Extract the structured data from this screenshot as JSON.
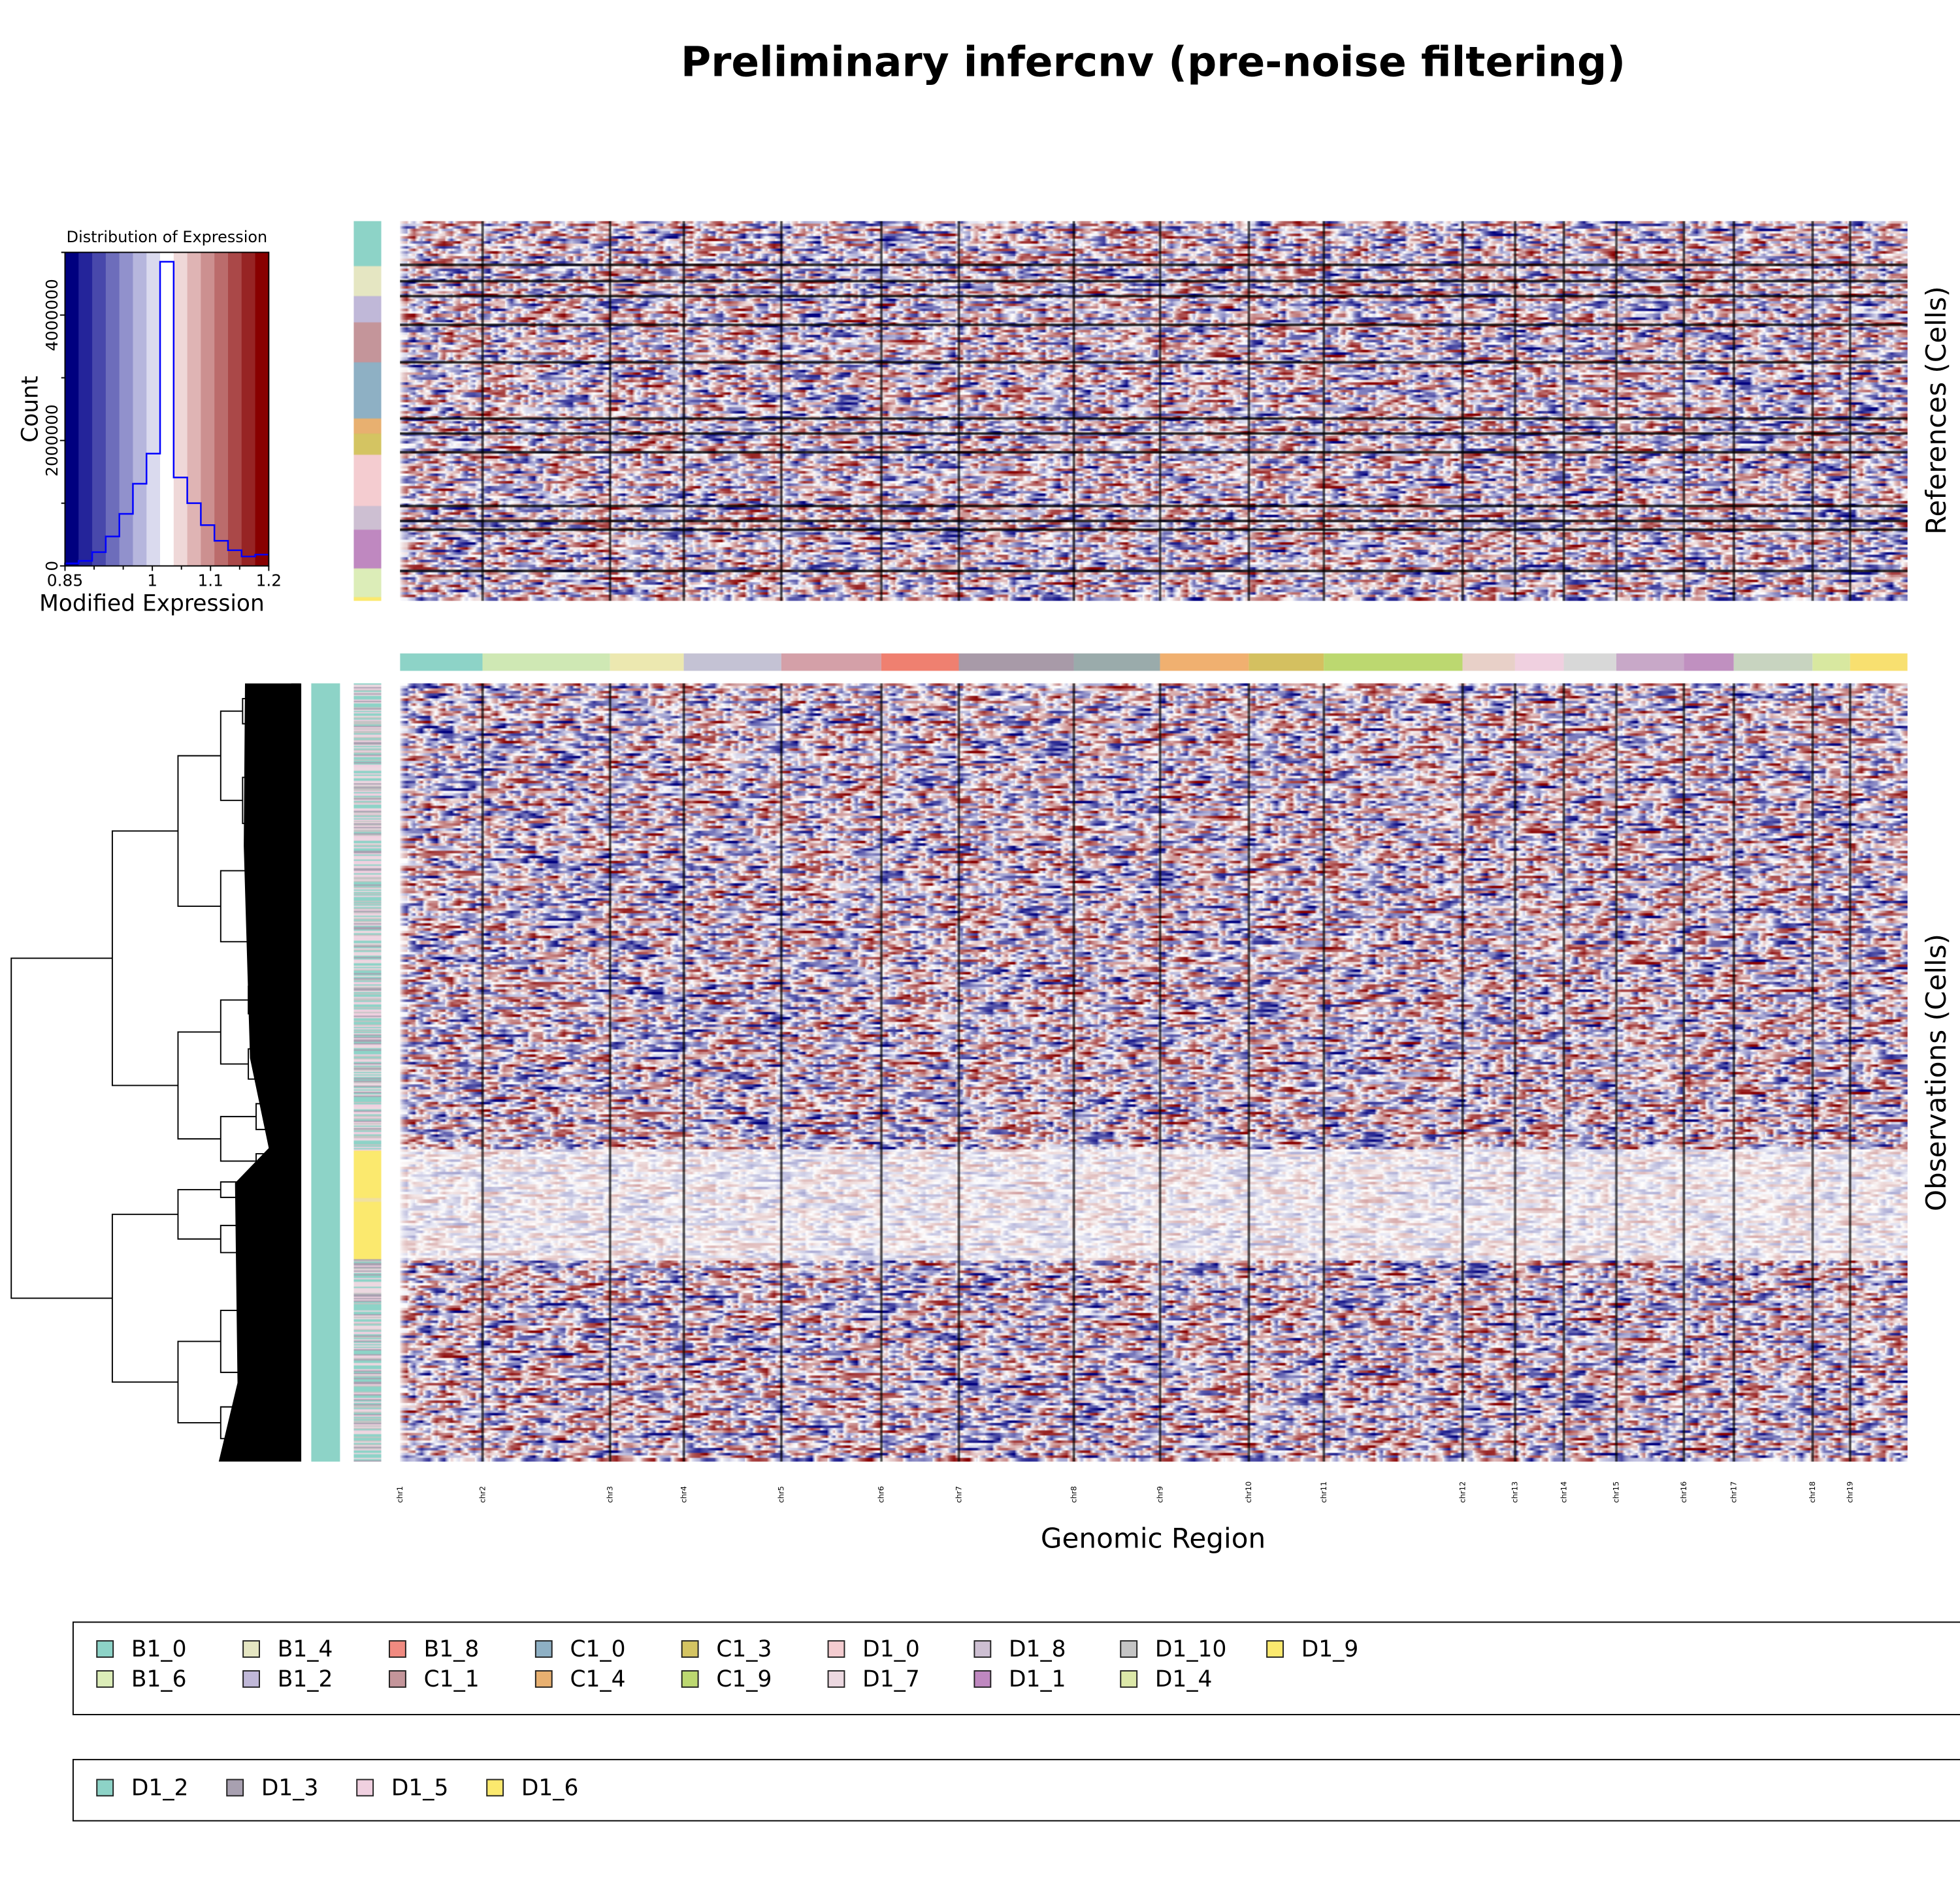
{
  "title": "Preliminary infercnv (pre-noise filtering)",
  "labels": {
    "references": "References (Cells)",
    "observations": "Observations (Cells)",
    "genomic_region": "Genomic Region"
  },
  "chart_data": [
    {
      "type": "bar",
      "subtype": "histogram-step",
      "title": "Distribution of Expression",
      "xlabel": "Modified Expression",
      "ylabel": "Count",
      "xlim": [
        0.85,
        1.2
      ],
      "ylim": [
        0,
        5000000
      ],
      "xticks": [
        {
          "v": 0.85,
          "label": "0.85"
        },
        {
          "v": 1.0,
          "label": "1"
        },
        {
          "v": 1.1,
          "label": "1.1"
        },
        {
          "v": 1.2,
          "label": "1.2"
        }
      ],
      "xminor": [
        0.9,
        0.95,
        1.05,
        1.15
      ],
      "yticks": [
        {
          "v": 0,
          "label": "0"
        },
        {
          "v": 2000000,
          "label": "2000000"
        },
        {
          "v": 4000000,
          "label": "4000000"
        }
      ],
      "yminor": [
        1000000,
        3000000,
        5000000
      ],
      "line_color": "#0000ff",
      "bin_colors": [
        "#00007f",
        "#24249a",
        "#4848ab",
        "#6d6dbb",
        "#9191cc",
        "#b6b6dd",
        "#dadaee",
        "#ffffff",
        "#efd8d8",
        "#dfb4b4",
        "#cc9090",
        "#bb6c6c",
        "#aa4848",
        "#972424",
        "#880000"
      ],
      "values": [
        40000,
        80000,
        220000,
        470000,
        830000,
        1310000,
        1790000,
        4850000,
        1410000,
        1000000,
        650000,
        400000,
        250000,
        150000,
        180000
      ]
    },
    {
      "type": "heatmap",
      "color_scale": {
        "low": "#00007f",
        "mid": "#ffffff",
        "high": "#880000",
        "range": [
          0.85,
          1.2
        ]
      },
      "chromosomes": [
        {
          "name": "chr1",
          "color": "#8dd3c7"
        },
        {
          "name": "chr2",
          "color": "#cfe8b4"
        },
        {
          "name": "chr3",
          "color": "#ece8b0"
        },
        {
          "name": "chr4",
          "color": "#c4c2d4"
        },
        {
          "name": "chr5",
          "color": "#d4a0a8"
        },
        {
          "name": "chr6",
          "color": "#ef8070"
        },
        {
          "name": "chr7",
          "color": "#a89aa8"
        },
        {
          "name": "chr8",
          "color": "#9aabab"
        },
        {
          "name": "chr9",
          "color": "#f0b070"
        },
        {
          "name": "chr10",
          "color": "#d4c060"
        },
        {
          "name": "chr11",
          "color": "#bcd870"
        },
        {
          "name": "chr12",
          "color": "#e8d0c8"
        },
        {
          "name": "chr13",
          "color": "#f0d0e0"
        },
        {
          "name": "chr14",
          "color": "#d8d8d8"
        },
        {
          "name": "chr15",
          "color": "#c8a8c8"
        },
        {
          "name": "chr16",
          "color": "#c090c0"
        },
        {
          "name": "chr17",
          "color": "#c8d4c0"
        },
        {
          "name": "chr18",
          "color": "#d8e8a0"
        },
        {
          "name": "chr19",
          "color": "#f8e070"
        }
      ],
      "reference_groups_colors": [
        "#8dd3c7",
        "#e5e6c2",
        "#c0b8d8",
        "#c4959a",
        "#8eb0c4",
        "#e8b070",
        "#d4c462",
        "#f4ccd0",
        "#cdbfd2",
        "#bf88c0",
        "#dcedb8",
        "#fbe96e"
      ]
    }
  ],
  "legend1": [
    {
      "label": "B1_0",
      "color": "#8dd3c7"
    },
    {
      "label": "B1_4",
      "color": "#e5e6c2"
    },
    {
      "label": "B1_8",
      "color": "#f08a80"
    },
    {
      "label": "C1_0",
      "color": "#8eb0c4"
    },
    {
      "label": "C1_3",
      "color": "#d4c462"
    },
    {
      "label": "D1_0",
      "color": "#f4ccd0"
    },
    {
      "label": "D1_8",
      "color": "#cdbfd2"
    },
    {
      "label": "D1_10",
      "color": "#c4c4c4"
    },
    {
      "label": "D1_9",
      "color": "#fbe96e"
    },
    {
      "label": "B1_6",
      "color": "#dcedb8"
    },
    {
      "label": "B1_2",
      "color": "#c0b8d8"
    },
    {
      "label": "C1_1",
      "color": "#c4959a"
    },
    {
      "label": "C1_4",
      "color": "#e8b070"
    },
    {
      "label": "C1_9",
      "color": "#bcd870"
    },
    {
      "label": "D1_7",
      "color": "#ecd8e0"
    },
    {
      "label": "D1_1",
      "color": "#bf88c0"
    },
    {
      "label": "D1_4",
      "color": "#dce8a8"
    }
  ],
  "legend2": [
    {
      "label": "D1_2",
      "color": "#8dd3c7"
    },
    {
      "label": "D1_3",
      "color": "#a8a0b0"
    },
    {
      "label": "D1_5",
      "color": "#f0d0e0"
    },
    {
      "label": "D1_6",
      "color": "#fbe96e"
    }
  ]
}
